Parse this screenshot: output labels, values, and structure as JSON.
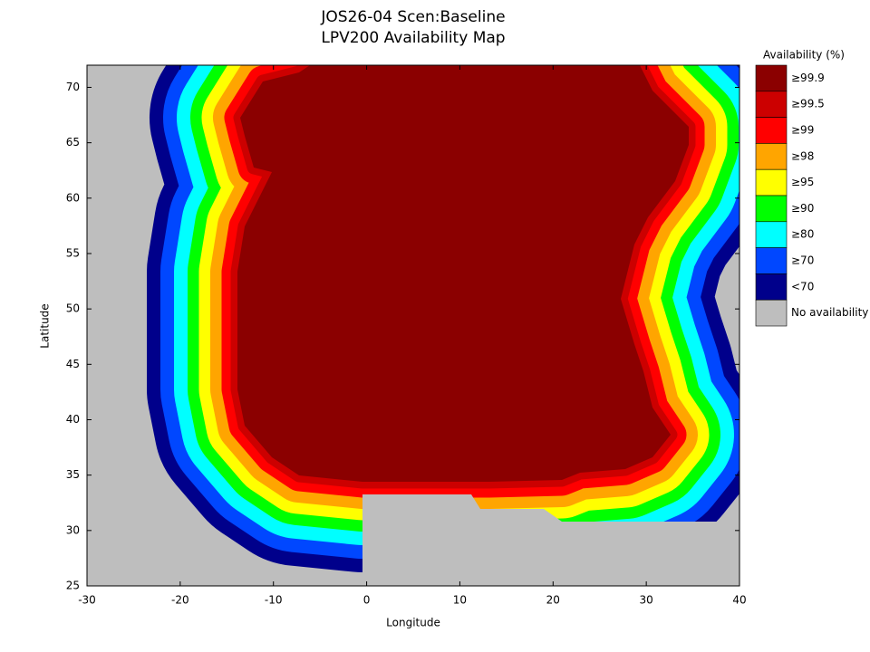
{
  "chart_data": {
    "type": "map",
    "title": [
      "JOS26-04 Scen:Baseline",
      "LPV200 Availability Map"
    ],
    "xlabel": "Longitude",
    "ylabel": "Latitude",
    "xlim": [
      -30,
      40
    ],
    "ylim": [
      25,
      72
    ],
    "xticks": [
      -30,
      -20,
      -10,
      0,
      10,
      20,
      30,
      40
    ],
    "yticks": [
      25,
      30,
      35,
      40,
      45,
      50,
      55,
      60,
      65,
      70
    ],
    "legend": {
      "title": "Availability (%)",
      "entries": [
        {
          "label": "≥99.9",
          "color": "#8b0000"
        },
        {
          "label": "≥99.5",
          "color": "#cc0000"
        },
        {
          "label": "≥99",
          "color": "#ff0000"
        },
        {
          "label": "≥98",
          "color": "#ffa500"
        },
        {
          "label": "≥95",
          "color": "#ffff00"
        },
        {
          "label": "≥90",
          "color": "#00ff00"
        },
        {
          "label": "≥80",
          "color": "#00ffff"
        },
        {
          "label": "≥70",
          "color": "#0047ff"
        },
        {
          "label": "<70",
          "color": "#00008b"
        },
        {
          "label": "No availability",
          "color": "#bebebe"
        }
      ]
    }
  }
}
